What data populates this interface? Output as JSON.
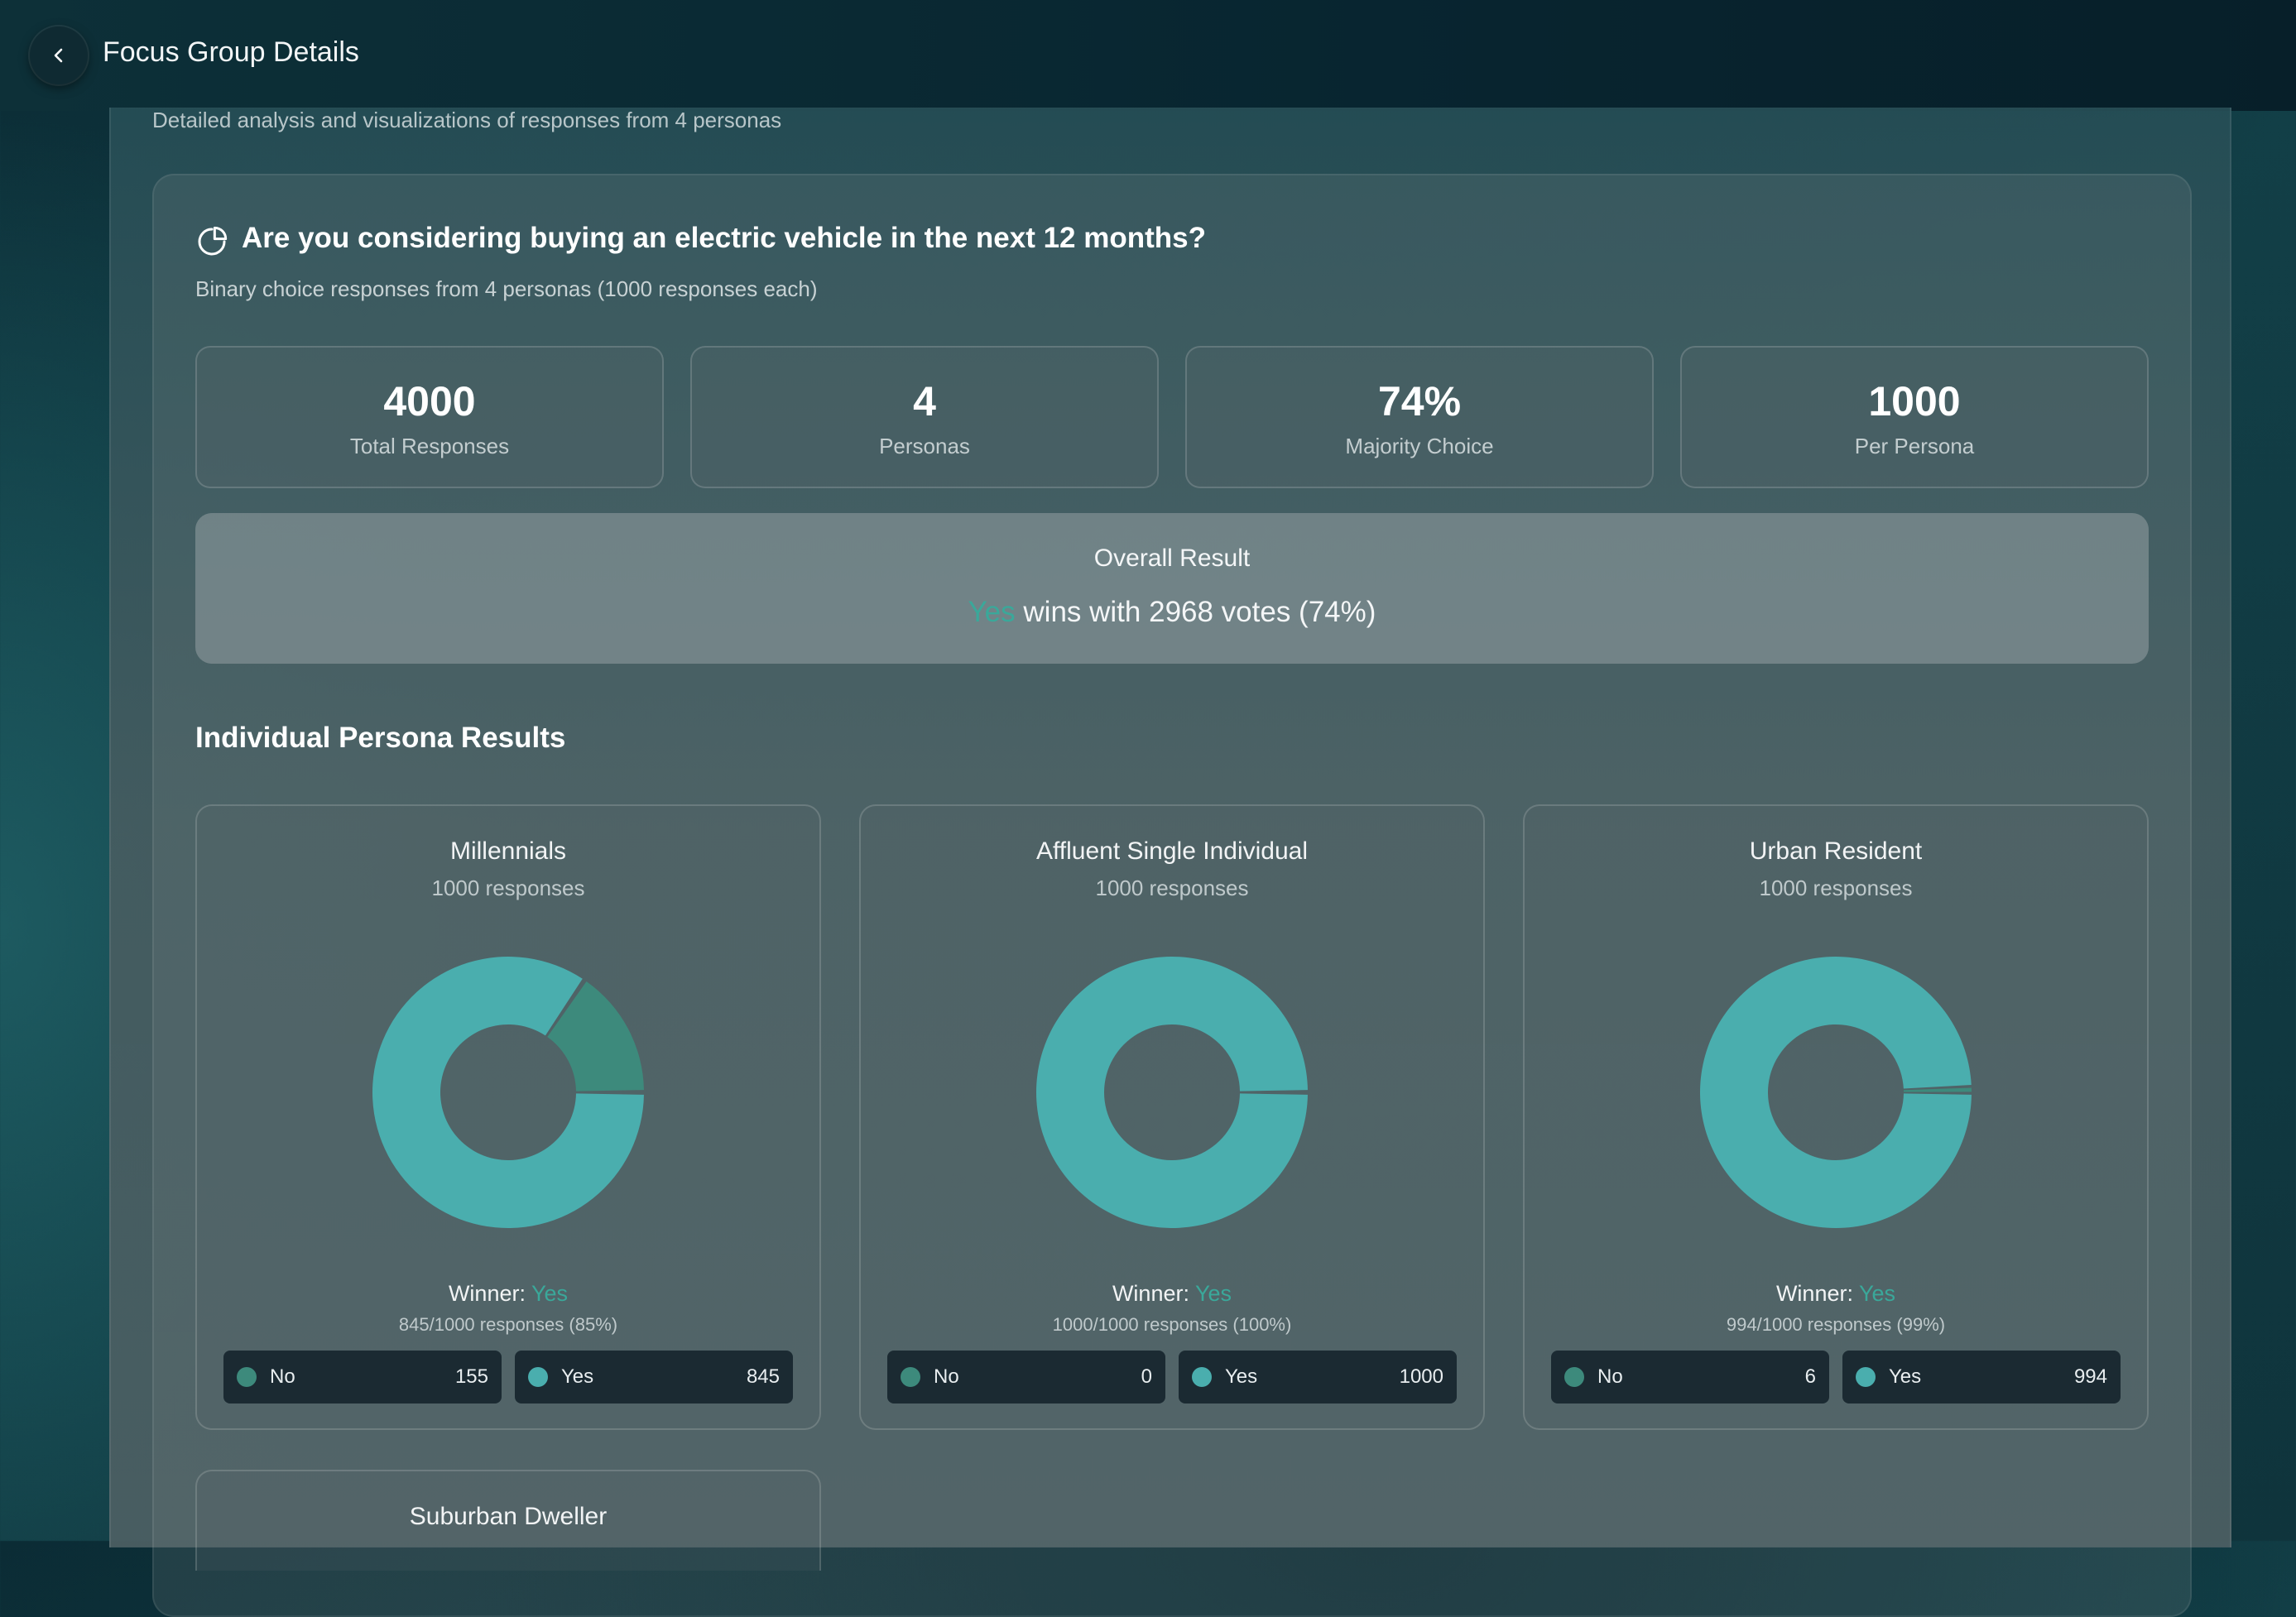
{
  "header": {
    "title": "Focus Group Details"
  },
  "panel": {
    "subtitle": "Detailed analysis and visualizations of responses from 4 personas"
  },
  "question": {
    "title": "Are you considering buying an electric vehicle in the next 12 months?",
    "subtitle": "Binary choice responses from 4 personas (1000 responses each)"
  },
  "stats": [
    {
      "value": "4000",
      "label": "Total Responses"
    },
    {
      "value": "4",
      "label": "Personas"
    },
    {
      "value": "74%",
      "label": "Majority Choice"
    },
    {
      "value": "1000",
      "label": "Per Persona"
    }
  ],
  "overall": {
    "title": "Overall Result",
    "winner": "Yes",
    "text": "wins with 2968 votes (74%)"
  },
  "section_title": "Individual Persona Results",
  "colors": {
    "yes": "#4aaeae",
    "no": "#3d8a7c",
    "accent": "#3aa89a"
  },
  "personas": [
    {
      "name": "Millennials",
      "count": "1000 responses",
      "winner_label": "Winner:",
      "winner": "Yes",
      "detail": "845/1000 responses (85%)",
      "no_label": "No",
      "no": 155,
      "yes_label": "Yes",
      "yes": 845
    },
    {
      "name": "Affluent Single Individual",
      "count": "1000 responses",
      "winner_label": "Winner:",
      "winner": "Yes",
      "detail": "1000/1000 responses (100%)",
      "no_label": "No",
      "no": 0,
      "yes_label": "Yes",
      "yes": 1000
    },
    {
      "name": "Urban Resident",
      "count": "1000 responses",
      "winner_label": "Winner:",
      "winner": "Yes",
      "detail": "994/1000 responses (99%)",
      "no_label": "No",
      "no": 6,
      "yes_label": "Yes",
      "yes": 994
    },
    {
      "name": "Suburban Dweller"
    }
  ]
}
